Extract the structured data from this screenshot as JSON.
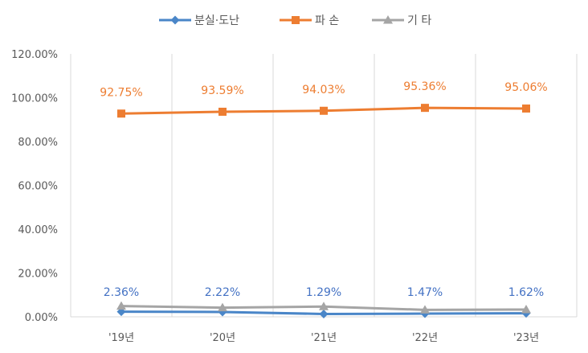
{
  "chart_data": {
    "type": "line",
    "categories": [
      "'19년",
      "'20년",
      "'21년",
      "'22년",
      "'23년"
    ],
    "ylim": [
      0,
      120
    ],
    "yticks": [
      "0.00%",
      "20.00%",
      "40.00%",
      "60.00%",
      "80.00%",
      "100.00%",
      "120.00%"
    ],
    "grid": "vertical",
    "legend_position": "top",
    "series": [
      {
        "name": "분실·도난",
        "color": "#4a86c8",
        "marker": "diamond",
        "values": [
          2.36,
          2.22,
          1.29,
          1.47,
          1.62
        ],
        "labels": [
          "2.36%",
          "2.22%",
          "1.29%",
          "1.47%",
          "1.62%"
        ],
        "label_color": "#4472c4"
      },
      {
        "name": "파 손",
        "color": "#ed7d31",
        "marker": "square",
        "values": [
          92.75,
          93.59,
          94.03,
          95.36,
          95.06
        ],
        "labels": [
          "92.75%",
          "93.59%",
          "94.03%",
          "95.36%",
          "95.06%"
        ],
        "label_color": "#ed7d31"
      },
      {
        "name": "기 타",
        "color": "#a5a5a5",
        "marker": "triangle",
        "values": [
          4.89,
          4.19,
          4.68,
          3.17,
          3.32
        ],
        "labels": null,
        "label_color": null
      }
    ]
  }
}
